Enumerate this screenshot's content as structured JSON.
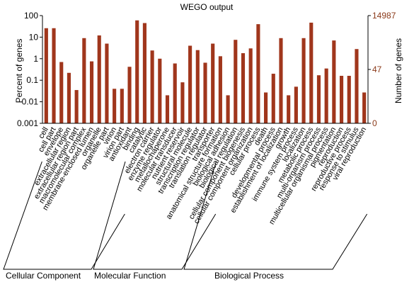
{
  "chart_data": {
    "type": "bar",
    "title": "WEGO output",
    "y_left_label": "Percent of genes",
    "y_right_label": "Number of genes",
    "y_scale": "log",
    "ylim": [
      0.001,
      100
    ],
    "y_left_ticks": [
      "0.001",
      "0.01",
      "0.1",
      "1",
      "10",
      "100"
    ],
    "y_right_ticks": [
      "0",
      "47",
      "14987"
    ],
    "categories": [
      "cell",
      "cell part",
      "envelope",
      "extracellular region",
      "extracellular region part",
      "macromolecular complex",
      "membrane-enclosed lumen",
      "organelle",
      "organelle part",
      "virion",
      "virion part",
      "antioxidant",
      "binding",
      "catalytic",
      "electron carrier",
      "enzyme regulator",
      "metallochaperone",
      "molecular transducer",
      "nutrient reservoir",
      "structural molecule",
      "transcription regulator",
      "translation regulator",
      "transporter",
      "anatomical structure formation",
      "biological adhesion",
      "biological regulation",
      "cellular component biogenesis",
      "cellular component organization",
      "cellular process",
      "death",
      "developmental process",
      "establishment of localization",
      "growth",
      "immune system process",
      "localization",
      "metabolic process",
      "multi-organism process",
      "multicellular organismal process",
      "pigmentation",
      "reproduction",
      "reproductive process",
      "response to stimulus",
      "viral reproduction"
    ],
    "values": [
      26,
      26,
      0.7,
      0.22,
      0.035,
      9,
      0.75,
      12,
      5,
      0.04,
      0.04,
      0.42,
      60,
      45,
      2.4,
      1,
      0.02,
      0.6,
      0.08,
      4,
      2.5,
      0.65,
      5,
      1.3,
      0.02,
      7.5,
      1.8,
      3,
      40,
      0.027,
      0.2,
      9,
      0.02,
      0.05,
      9,
      47,
      0.17,
      0.35,
      7,
      0.16,
      0.16,
      2.8,
      0.027
    ],
    "bar_color": "#a0361c",
    "axis_color": "#000000",
    "right_axis_color": "#8b3a1a",
    "grid": false,
    "groups": [
      {
        "name": "Cellular Component",
        "start": 0,
        "end": 10
      },
      {
        "name": "Molecular Function",
        "start": 11,
        "end": 22
      },
      {
        "name": "Biological Process",
        "start": 23,
        "end": 42
      }
    ]
  }
}
